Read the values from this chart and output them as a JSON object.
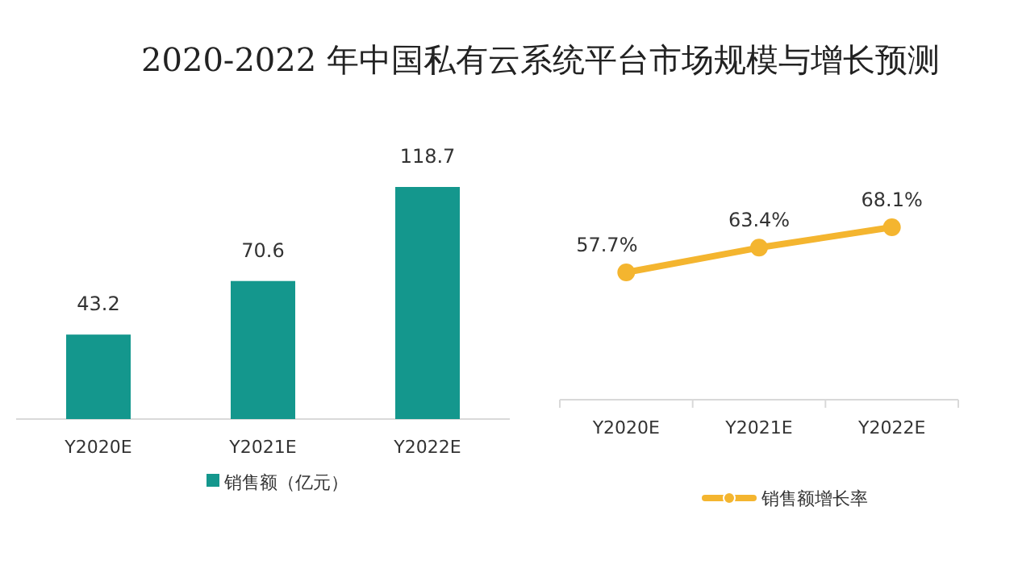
{
  "chart_data": [
    {
      "type": "bar",
      "title": "2020-2022 年中国私有云系统平台市场规模与增长预测",
      "categories": [
        "Y2020E",
        "Y2021E",
        "Y2022E"
      ],
      "series": [
        {
          "name": "销售额（亿元）",
          "color": "#14978d",
          "values": [
            43.2,
            70.6,
            118.7
          ]
        }
      ],
      "data_labels": true,
      "legend": "bottom"
    },
    {
      "type": "line",
      "categories": [
        "Y2020E",
        "Y2021E",
        "Y2022E"
      ],
      "series": [
        {
          "name": "销售额增长率",
          "color": "#f4b52f",
          "values": [
            57.7,
            63.4,
            68.1
          ],
          "value_labels": [
            "57.7%",
            "63.4%",
            "68.1%"
          ]
        }
      ],
      "marker": "circle",
      "legend": "bottom"
    }
  ]
}
